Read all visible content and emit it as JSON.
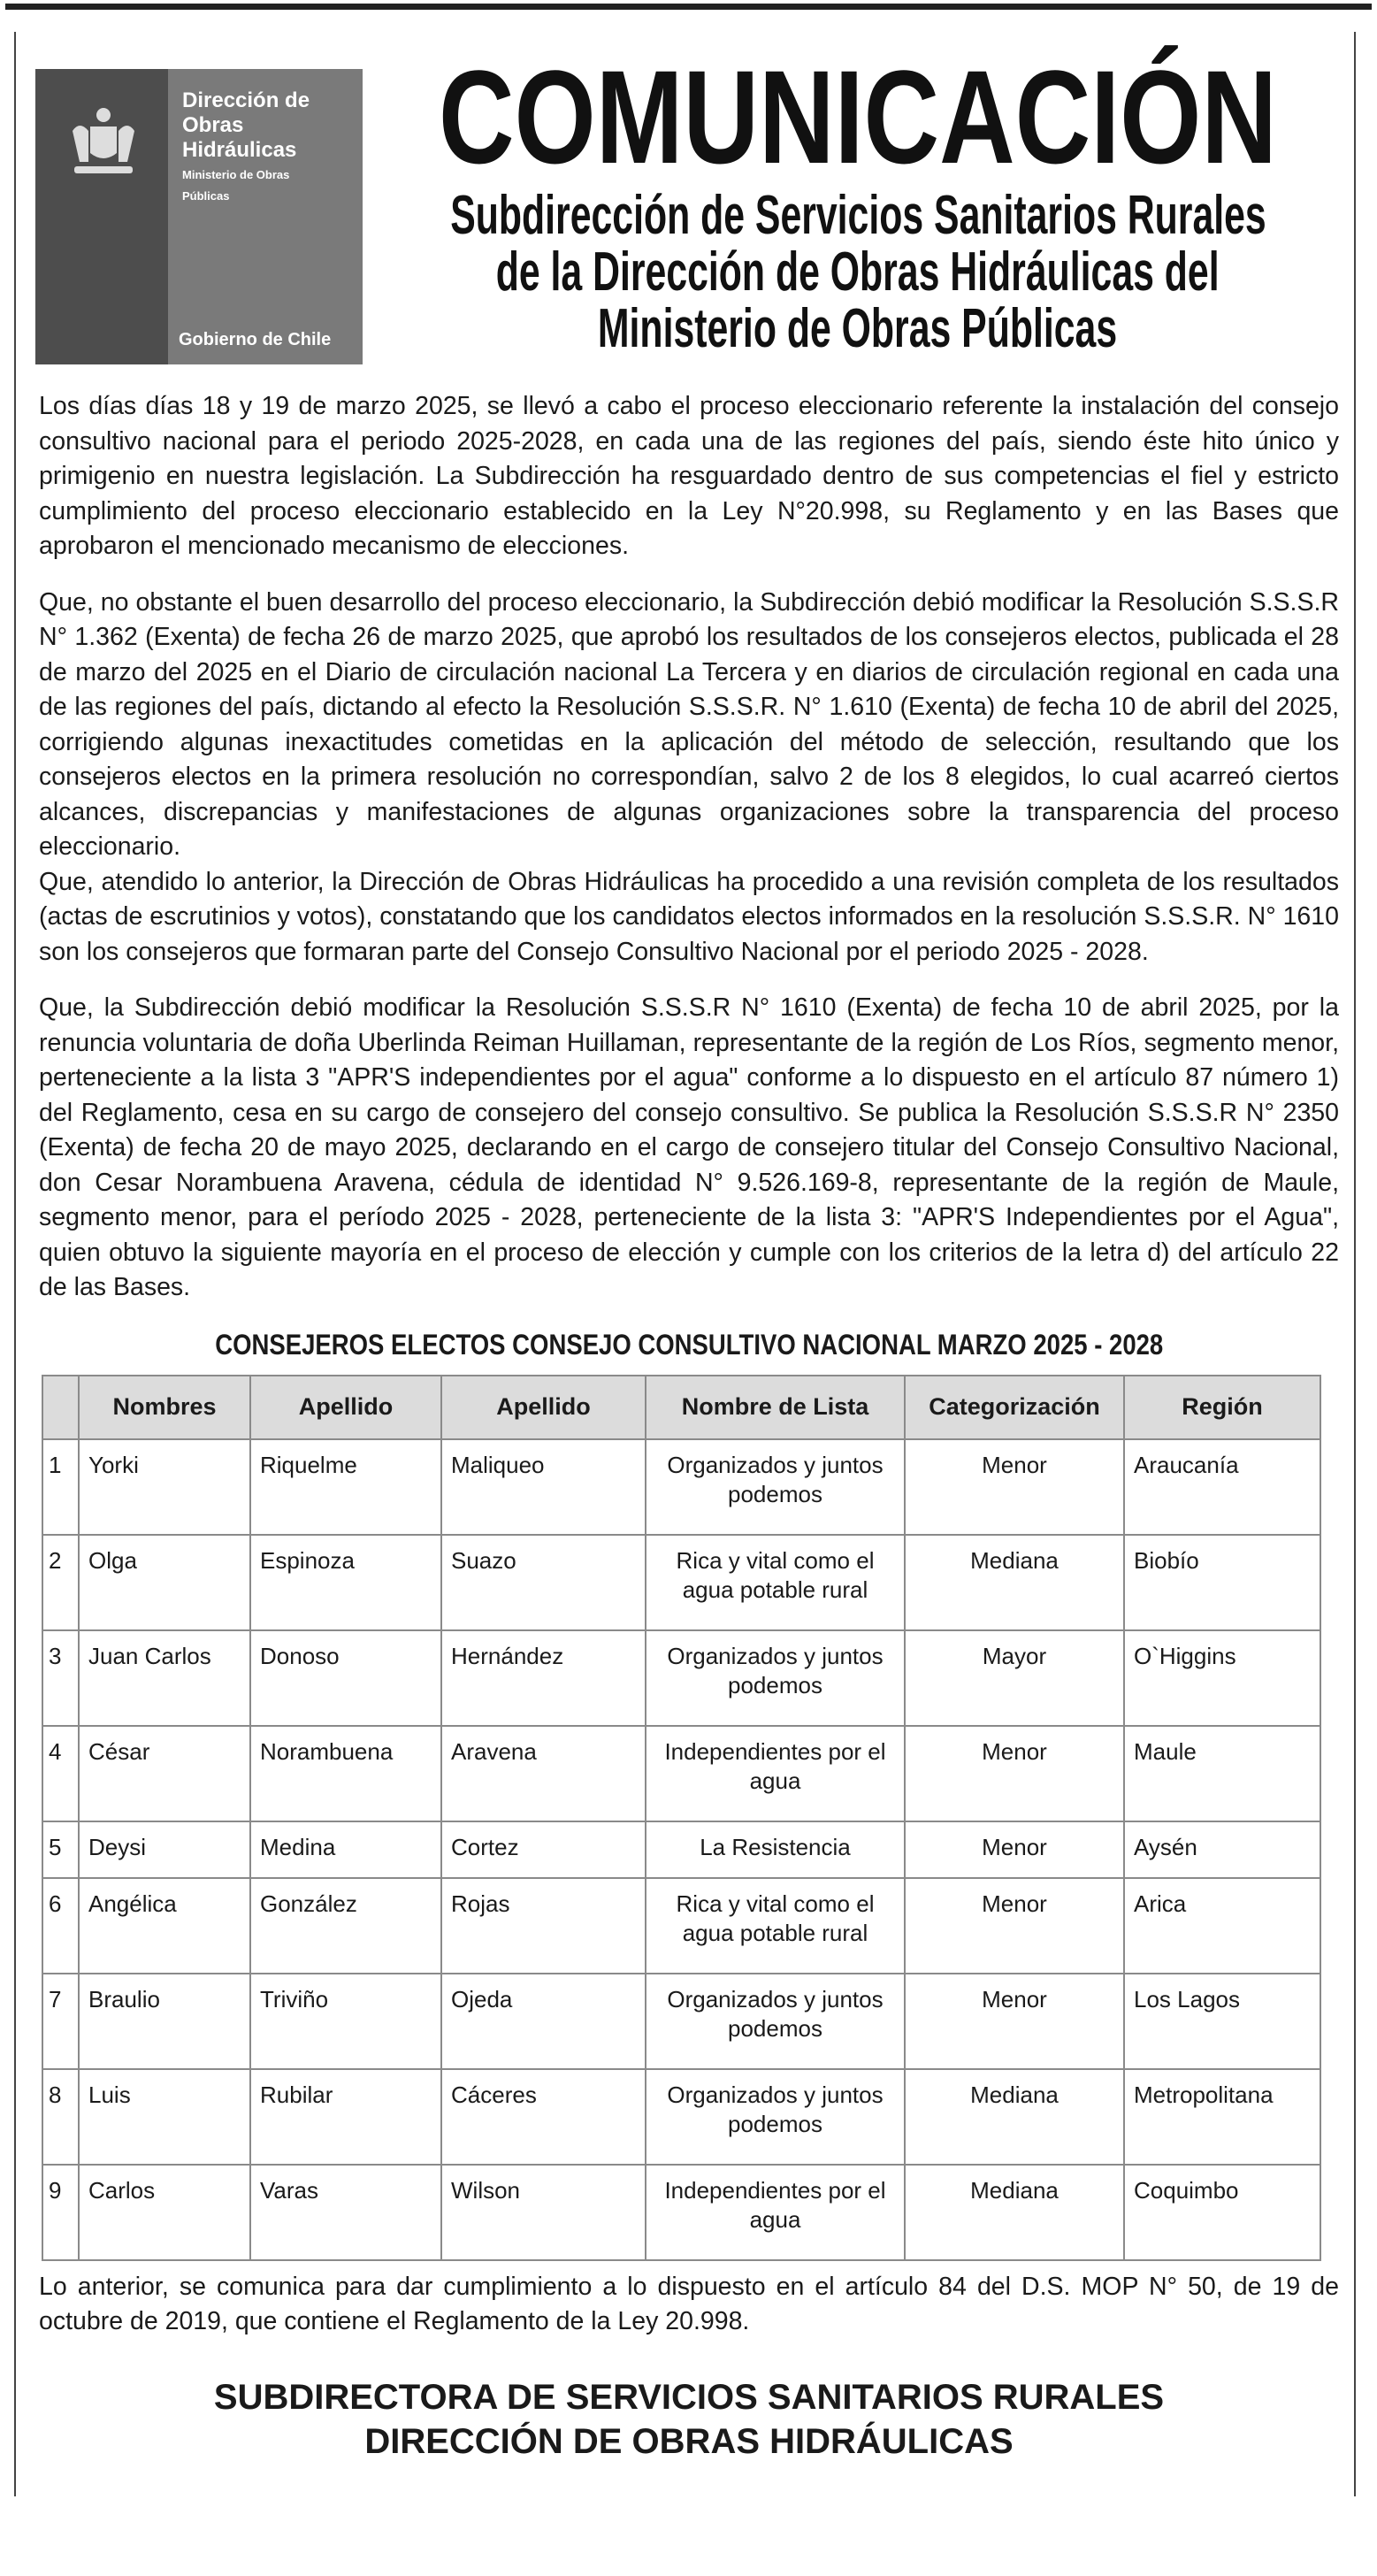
{
  "logo": {
    "line1": "Dirección de",
    "line2": "Obras",
    "line3": "Hidráulicas",
    "ministry1": "Ministerio de Obras",
    "ministry2": "Públicas",
    "government": "Gobierno de Chile"
  },
  "header": {
    "title": "COMUNICACIÓN",
    "subtitle_lines": [
      "Subdirección de Servicios Sanitarios Rurales",
      "de la Dirección de Obras Hidráulicas del",
      "Ministerio de Obras Públicas"
    ]
  },
  "paragraphs": [
    "Los días días 18 y 19 de marzo 2025, se llevó a cabo el proceso eleccionario referente la instalación del consejo consultivo nacional para el periodo 2025-2028, en cada una de las regiones del país, siendo éste hito único y primigenio en nuestra legislación. La Subdirección ha resguardado dentro de sus competencias el fiel y estricto cumplimiento del proceso eleccionario establecido en la Ley N°20.998, su Reglamento y en las Bases que aprobaron el mencionado mecanismo de elecciones.",
    "Que, no obstante el buen desarrollo del proceso eleccionario, la Subdirección debió modificar la Resolución S.S.S.R N° 1.362 (Exenta) de fecha 26 de marzo 2025, que aprobó los resultados de los consejeros electos, publicada el 28 de marzo del 2025 en el Diario de circulación nacional La Tercera y en diarios de circulación regional en cada una de las regiones del país,  dictando al efecto la  Resolución S.S.S.R. N° 1.610 (Exenta) de fecha 10 de abril del 2025, corrigiendo algunas inexactitudes cometidas en la aplicación del método de selección, resultando que los consejeros electos en  la primera resolución no correspondían, salvo 2 de los 8 elegidos, lo cual acarreó ciertos alcances, discrepancias y manifestaciones de algunas organizaciones sobre la transparencia del proceso eleccionario.",
    "Que, atendido lo anterior, la Dirección de Obras Hidráulicas ha procedido a una revisión completa de los resultados (actas de escrutinios y votos), constatando que los candidatos electos informados en la resolución S.S.S.R. N° 1610 son los consejeros que formaran parte del Consejo Consultivo Nacional por el periodo 2025 - 2028.",
    "Que, la Subdirección debió modificar la Resolución S.S.S.R N° 1610  (Exenta) de fecha 10 de abril 2025, por la renuncia voluntaria de doña Uberlinda Reiman Huillaman, representante de la región de Los Ríos, segmento menor, perteneciente a la lista 3 \"APR'S independientes por el agua\" conforme a lo dispuesto en el artículo 87 número 1) del Reglamento, cesa en su cargo de consejero del consejo consultivo. Se publica la Resolución S.S.S.R N° 2350  (Exenta) de fecha 20 de mayo 2025, declarando en el cargo de consejero titular del Consejo Consultivo Nacional, don Cesar Norambuena Aravena, cédula de identidad N° 9.526.169-8, representante de la región de Maule, segmento menor, para el período 2025 - 2028, perteneciente de la lista 3: \"APR'S Independientes por el Agua\", quien obtuvo la siguiente mayoría en el proceso de elección y cumple con los criterios de la letra d) del artículo 22 de las Bases."
  ],
  "table": {
    "title": "CONSEJEROS ELECTOS CONSEJO CONSULTIVO NACIONAL MARZO 2025 - 2028",
    "headers": [
      "",
      "Nombres",
      "Apellido",
      "Apellido",
      "Nombre de Lista",
      "Categorización",
      "Región"
    ],
    "rows": [
      [
        "1",
        "Yorki",
        "Riquelme",
        "Maliqueo",
        "Organizados y juntos podemos",
        "Menor",
        "Araucanía"
      ],
      [
        "2",
        "Olga",
        "Espinoza",
        "Suazo",
        "Rica y vital como el agua potable rural",
        "Mediana",
        "Biobío"
      ],
      [
        "3",
        "Juan Carlos",
        "Donoso",
        "Hernández",
        "Organizados y juntos podemos",
        "Mayor",
        "O`Higgins"
      ],
      [
        "4",
        "César",
        "Norambuena",
        "Aravena",
        "Independientes por el agua",
        "Menor",
        "Maule"
      ],
      [
        "5",
        "Deysi",
        "Medina",
        "Cortez",
        "La Resistencia",
        "Menor",
        "Aysén"
      ],
      [
        "6",
        "Angélica",
        "González",
        "Rojas",
        "Rica y vital como el agua potable rural",
        "Menor",
        "Arica"
      ],
      [
        "7",
        "Braulio",
        "Triviño",
        "Ojeda",
        "Organizados y juntos podemos",
        "Menor",
        "Los Lagos"
      ],
      [
        "8",
        "Luis",
        "Rubilar",
        "Cáceres",
        "Organizados y juntos podemos",
        "Mediana",
        "Metropolitana"
      ],
      [
        "9",
        "Carlos",
        "Varas",
        "Wilson",
        "Independientes por el agua",
        "Mediana",
        "Coquimbo"
      ]
    ]
  },
  "closing": "Lo anterior, se comunica para dar cumplimiento a lo dispuesto en el artículo 84 del D.S. MOP N° 50, de 19 de octubre de 2019, que contiene el Reglamento de la Ley 20.998.",
  "signature": {
    "line1": "SUBDIRECTORA DE SERVICIOS SANITARIOS RURALES",
    "line2": "DIRECCIÓN DE OBRAS HIDRÁULICAS"
  }
}
